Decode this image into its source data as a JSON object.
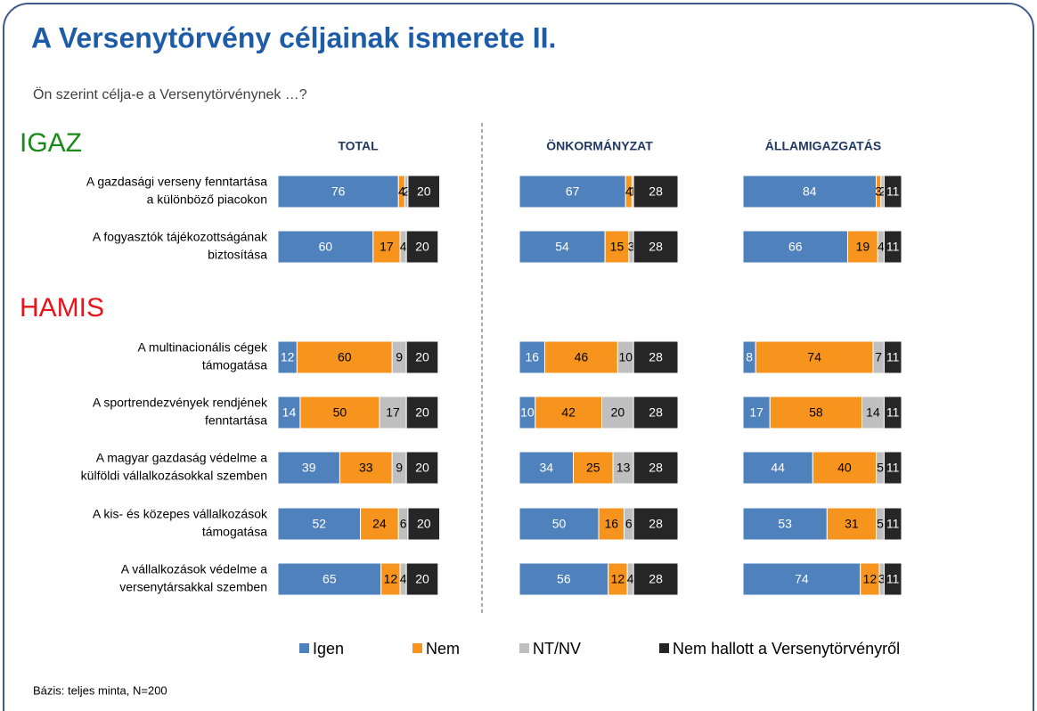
{
  "chart_data": {
    "type": "bar",
    "stacked": true,
    "title": "A Versenytörvény céljainak ismerete II.",
    "subtitle": "Ön szerint célja-e a Versenytörvénynek …?",
    "footnote": "Bázis: teljes minta, N=200",
    "groups": [
      {
        "label": "IGAZ",
        "color": "#1a8a1a",
        "start": 0
      },
      {
        "label": "HAMIS",
        "color": "#e8141c",
        "start": 2
      }
    ],
    "categories": [
      [
        "A gazdasági verseny fenntartása",
        "a különböző piacokon"
      ],
      [
        "A fogyasztók tájékozottságának",
        "biztosítása"
      ],
      [
        "A multinacionális cégek",
        "támogatása"
      ],
      [
        "A sportrendezvények rendjének",
        "fenntartása"
      ],
      [
        "A magyar gazdaság védelme a",
        "külföldi vállalkozásokkal szemben"
      ],
      [
        "A kis- és közepes vállalkozások",
        "támogatása"
      ],
      [
        "A vállalkozások védelme a",
        "versenytársakkal szemben"
      ]
    ],
    "series_info": [
      {
        "name": "Igen",
        "color": "#4f81bd"
      },
      {
        "name": "Nem",
        "color": "#f7941d"
      },
      {
        "name": "NT/NV",
        "color": "#bfbfbf"
      },
      {
        "name": "Nem hallott a Versenytörvényről",
        "color": "#262626"
      }
    ],
    "panels": [
      {
        "title": "TOTAL",
        "series": [
          [
            76,
            60,
            12,
            14,
            39,
            52,
            65
          ],
          [
            4,
            17,
            60,
            50,
            33,
            24,
            12
          ],
          [
            2,
            4,
            9,
            17,
            9,
            6,
            4
          ],
          [
            20,
            20,
            20,
            20,
            20,
            20,
            20
          ]
        ]
      },
      {
        "title": "ÖNKORMÁNYZAT",
        "series": [
          [
            67,
            54,
            16,
            10,
            34,
            50,
            56
          ],
          [
            4,
            15,
            46,
            42,
            25,
            16,
            12
          ],
          [
            1,
            3,
            10,
            20,
            13,
            6,
            4
          ],
          [
            28,
            28,
            28,
            28,
            28,
            28,
            28
          ]
        ]
      },
      {
        "title": "ÁLLAMIGAZGATÁS",
        "series": [
          [
            84,
            66,
            8,
            17,
            44,
            53,
            74
          ],
          [
            3,
            19,
            74,
            58,
            40,
            31,
            12
          ],
          [
            2,
            4,
            7,
            14,
            5,
            5,
            3
          ],
          [
            11,
            11,
            11,
            11,
            11,
            11,
            11
          ]
        ]
      }
    ]
  }
}
